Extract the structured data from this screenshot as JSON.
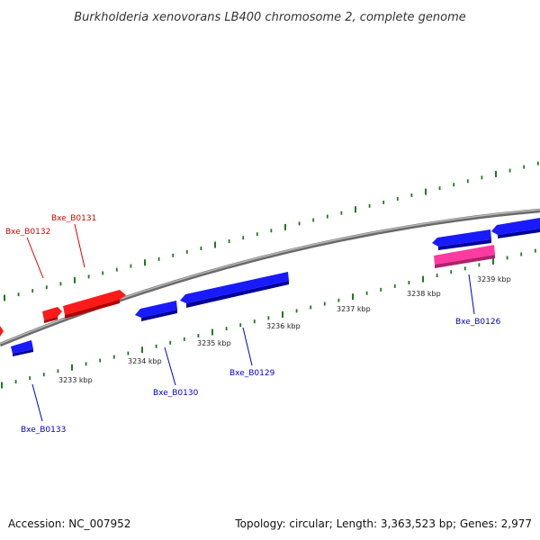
{
  "title": "Burkholderia xenovorans LB400 chromosome 2, complete genome",
  "footer": {
    "accession": "Accession: NC_007952",
    "topology": "Topology: circular; Length: 3,363,523 bp; Genes: 2,977"
  },
  "colors": {
    "background": "#ffffff",
    "backbone": "#8a8a8a",
    "tick": "#1e7a1e",
    "gene_forward": "#ff0000",
    "gene_reverse": "#0000ee",
    "gene_highlight": "#ff3aa0"
  },
  "scale_labels": [
    "3233 kbp",
    "3234 kbp",
    "3235 kbp",
    "3236 kbp",
    "3237 kbp",
    "3238 kbp",
    "3239 kbp"
  ],
  "gene_labels": [
    {
      "name": "Bxe_B0131",
      "strand": "forward"
    },
    {
      "name": "Bxe_B0132",
      "strand": "forward"
    },
    {
      "name": "Bxe_B0126",
      "strand": "reverse"
    },
    {
      "name": "Bxe_B0129",
      "strand": "reverse"
    },
    {
      "name": "Bxe_B0130",
      "strand": "reverse"
    },
    {
      "name": "Bxe_B0133",
      "strand": "reverse"
    }
  ]
}
